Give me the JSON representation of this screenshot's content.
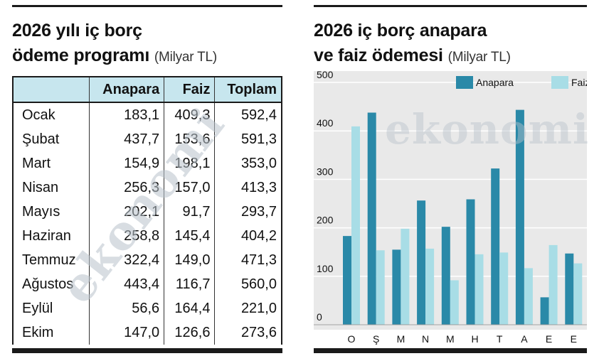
{
  "left": {
    "title_line1": "2026 yılı iç borç",
    "title_line2": "ödeme programı",
    "unit": "(Milyar TL)",
    "columns": [
      "",
      "Anapara",
      "Faiz",
      "Toplam"
    ],
    "rows": [
      {
        "month": "Ocak",
        "anapara": "183,1",
        "faiz": "409,3",
        "toplam": "592,4"
      },
      {
        "month": "Şubat",
        "anapara": "437,7",
        "faiz": "153,6",
        "toplam": "591,3"
      },
      {
        "month": "Mart",
        "anapara": "154,9",
        "faiz": "198,1",
        "toplam": "353,0"
      },
      {
        "month": "Nisan",
        "anapara": "256,3",
        "faiz": "157,0",
        "toplam": "413,3"
      },
      {
        "month": "Mayıs",
        "anapara": "202,1",
        "faiz": "91,7",
        "toplam": "293,7"
      },
      {
        "month": "Haziran",
        "anapara": "258,8",
        "faiz": "145,4",
        "toplam": "404,2"
      },
      {
        "month": "Temmuz",
        "anapara": "322,4",
        "faiz": "149,0",
        "toplam": "471,3"
      },
      {
        "month": "Ağustos",
        "anapara": "443,4",
        "faiz": "116,7",
        "toplam": "560,0"
      },
      {
        "month": "Eylül",
        "anapara": "56,6",
        "faiz": "164,4",
        "toplam": "221,0"
      },
      {
        "month": "Ekim",
        "anapara": "147,0",
        "faiz": "126,6",
        "toplam": "273,6"
      }
    ],
    "watermark": "ekonomi"
  },
  "right": {
    "title_line1": "2026 iç borç anapara",
    "title_line2": "ve faiz ödemesi",
    "unit": "(Milyar TL)",
    "watermark": "ekonomi"
  },
  "chart_data": {
    "type": "bar",
    "title": "2026 iç borç anapara ve faiz ödemesi (Milyar TL)",
    "categories": [
      "O",
      "Ş",
      "M",
      "N",
      "M",
      "H",
      "T",
      "A",
      "E",
      "E"
    ],
    "series": [
      {
        "name": "Anapara",
        "color": "#2a89a8",
        "values": [
          183.1,
          437.7,
          154.9,
          256.3,
          202.1,
          258.8,
          322.4,
          443.4,
          56.6,
          147.0
        ]
      },
      {
        "name": "Faiz",
        "color": "#a8dde6",
        "values": [
          409.3,
          153.6,
          198.1,
          157.0,
          91.7,
          145.4,
          149.0,
          116.7,
          164.4,
          126.6
        ]
      }
    ],
    "ylim": [
      0,
      500
    ],
    "yticks": [
      0,
      100,
      200,
      300,
      400,
      500
    ],
    "legend_position": "top",
    "grid": true,
    "xlabel": "",
    "ylabel": ""
  }
}
